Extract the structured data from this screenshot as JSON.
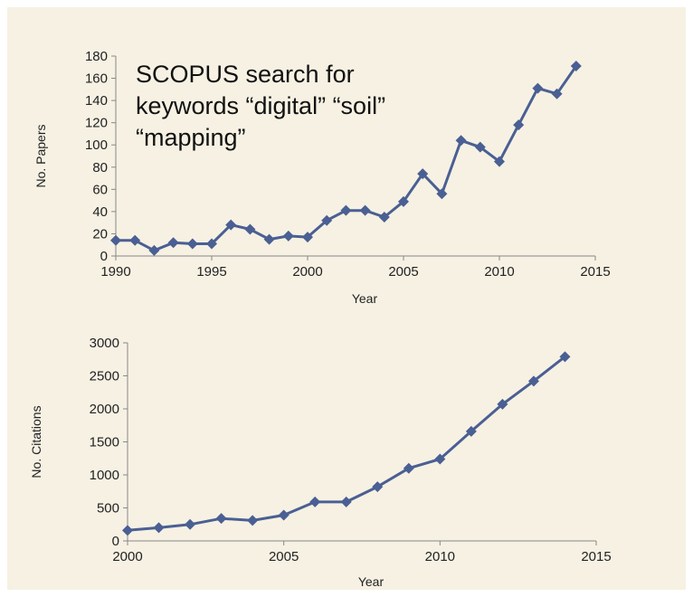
{
  "annotation": {
    "lines": [
      "SCOPUS search for",
      "keywords “digital” “soil”",
      "“mapping”"
    ]
  },
  "chart_data": [
    {
      "type": "line",
      "title": "",
      "xlabel": "Year",
      "ylabel": "No. Papers",
      "xlim": [
        1990,
        2015
      ],
      "ylim": [
        0,
        180
      ],
      "xticks": [
        1990,
        1995,
        2000,
        2005,
        2010,
        2015
      ],
      "yticks": [
        0,
        20,
        40,
        60,
        80,
        100,
        120,
        140,
        160,
        180
      ],
      "grid": false,
      "marker": "diamond",
      "color": "#4a5f93",
      "x": [
        1990,
        1991,
        1992,
        1993,
        1994,
        1995,
        1996,
        1997,
        1998,
        1999,
        2000,
        2001,
        2002,
        2003,
        2004,
        2005,
        2006,
        2007,
        2008,
        2009,
        2010,
        2011,
        2012,
        2013,
        2014
      ],
      "y": [
        14,
        14,
        5,
        12,
        11,
        11,
        28,
        24,
        15,
        18,
        17,
        32,
        41,
        41,
        35,
        49,
        74,
        56,
        104,
        98,
        85,
        118,
        151,
        146,
        171
      ]
    },
    {
      "type": "line",
      "title": "",
      "xlabel": "Year",
      "ylabel": "No. Citations",
      "xlim": [
        2000,
        2015
      ],
      "ylim": [
        0,
        3000
      ],
      "xticks": [
        2000,
        2005,
        2010,
        2015
      ],
      "yticks": [
        0,
        500,
        1000,
        1500,
        2000,
        2500,
        3000
      ],
      "grid": false,
      "marker": "diamond",
      "color": "#4a5f93",
      "x": [
        2000,
        2001,
        2002,
        2003,
        2004,
        2005,
        2006,
        2007,
        2008,
        2009,
        2010,
        2011,
        2012,
        2013,
        2014
      ],
      "y": [
        160,
        200,
        250,
        340,
        310,
        390,
        590,
        590,
        820,
        1100,
        1240,
        1660,
        2070,
        2420,
        2790
      ]
    }
  ]
}
